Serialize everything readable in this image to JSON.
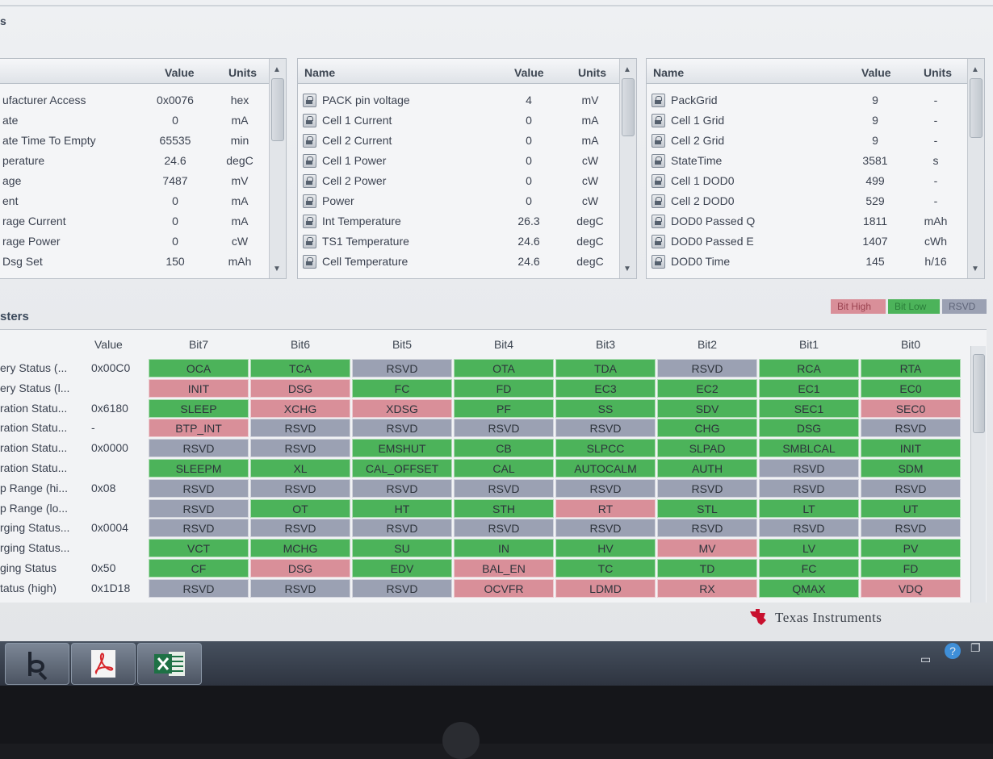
{
  "window": {
    "title_fragment": "s"
  },
  "panel1": {
    "headers": {
      "name": "",
      "value": "Value",
      "units": "Units"
    },
    "rows": [
      {
        "name": "ufacturer Access",
        "value": "0x0076",
        "units": "hex"
      },
      {
        "name": "ate",
        "value": "0",
        "units": "mA"
      },
      {
        "name": "ate Time To Empty",
        "value": "65535",
        "units": "min"
      },
      {
        "name": "perature",
        "value": "24.6",
        "units": "degC"
      },
      {
        "name": "age",
        "value": "7487",
        "units": "mV"
      },
      {
        "name": "ent",
        "value": "0",
        "units": "mA"
      },
      {
        "name": "rage Current",
        "value": "0",
        "units": "mA"
      },
      {
        "name": "rage Power",
        "value": "0",
        "units": "cW"
      },
      {
        "name": "Dsg Set",
        "value": "150",
        "units": "mAh"
      }
    ]
  },
  "panel2": {
    "headers": {
      "name": "Name",
      "value": "Value",
      "units": "Units"
    },
    "rows": [
      {
        "name": "PACK pin voltage",
        "value": "4",
        "units": "mV"
      },
      {
        "name": "Cell 1 Current",
        "value": "0",
        "units": "mA"
      },
      {
        "name": "Cell 2 Current",
        "value": "0",
        "units": "mA"
      },
      {
        "name": "Cell 1 Power",
        "value": "0",
        "units": "cW"
      },
      {
        "name": "Cell 2 Power",
        "value": "0",
        "units": "cW"
      },
      {
        "name": "Power",
        "value": "0",
        "units": "cW"
      },
      {
        "name": "Int Temperature",
        "value": "26.3",
        "units": "degC"
      },
      {
        "name": "TS1 Temperature",
        "value": "24.6",
        "units": "degC"
      },
      {
        "name": "Cell Temperature",
        "value": "24.6",
        "units": "degC"
      }
    ]
  },
  "panel3": {
    "headers": {
      "name": "Name",
      "value": "Value",
      "units": "Units"
    },
    "rows": [
      {
        "name": "PackGrid",
        "value": "9",
        "units": "-"
      },
      {
        "name": "Cell 1 Grid",
        "value": "9",
        "units": "-"
      },
      {
        "name": "Cell 2 Grid",
        "value": "9",
        "units": "-"
      },
      {
        "name": "StateTime",
        "value": "3581",
        "units": "s"
      },
      {
        "name": "Cell 1 DOD0",
        "value": "499",
        "units": "-"
      },
      {
        "name": "Cell 2 DOD0",
        "value": "529",
        "units": "-"
      },
      {
        "name": "DOD0 Passed Q",
        "value": "1811",
        "units": "mAh"
      },
      {
        "name": "DOD0 Passed E",
        "value": "1407",
        "units": "cWh"
      },
      {
        "name": "DOD0 Time",
        "value": "145",
        "units": "h/16"
      }
    ]
  },
  "registers_title": "sters",
  "legend": {
    "high": "Bit High",
    "low": "Bit Low",
    "rsvd": "RSVD"
  },
  "legend_colors": {
    "high": "#d98f99",
    "low": "#4cb35a",
    "rsvd": "#9ba1b3"
  },
  "grid": {
    "value_header": "Value",
    "bit_headers": [
      "Bit7",
      "Bit6",
      "Bit5",
      "Bit4",
      "Bit3",
      "Bit2",
      "Bit1",
      "Bit0"
    ],
    "rows": [
      {
        "label": "ery Status (...",
        "value": "0x00C0",
        "bits": [
          [
            "OCA",
            "g"
          ],
          [
            "TCA",
            "g"
          ],
          [
            "RSVD",
            "b"
          ],
          [
            "OTA",
            "g"
          ],
          [
            "TDA",
            "g"
          ],
          [
            "RSVD",
            "b"
          ],
          [
            "RCA",
            "g"
          ],
          [
            "RTA",
            "g"
          ]
        ]
      },
      {
        "label": "ery Status (l...",
        "value": "",
        "bits": [
          [
            "INIT",
            "r"
          ],
          [
            "DSG",
            "r"
          ],
          [
            "FC",
            "g"
          ],
          [
            "FD",
            "g"
          ],
          [
            "EC3",
            "g"
          ],
          [
            "EC2",
            "g"
          ],
          [
            "EC1",
            "g"
          ],
          [
            "EC0",
            "g"
          ]
        ]
      },
      {
        "label": "ration Statu...",
        "value": "0x6180",
        "bits": [
          [
            "SLEEP",
            "g"
          ],
          [
            "XCHG",
            "r"
          ],
          [
            "XDSG",
            "r"
          ],
          [
            "PF",
            "g"
          ],
          [
            "SS",
            "g"
          ],
          [
            "SDV",
            "g"
          ],
          [
            "SEC1",
            "g"
          ],
          [
            "SEC0",
            "r"
          ]
        ]
      },
      {
        "label": "ration Statu...",
        "value": "-",
        "bits": [
          [
            "BTP_INT",
            "r"
          ],
          [
            "RSVD",
            "b"
          ],
          [
            "RSVD",
            "b"
          ],
          [
            "RSVD",
            "b"
          ],
          [
            "RSVD",
            "b"
          ],
          [
            "CHG",
            "g"
          ],
          [
            "DSG",
            "g"
          ],
          [
            "RSVD",
            "b"
          ]
        ]
      },
      {
        "label": "ration Statu...",
        "value": "0x0000",
        "bits": [
          [
            "RSVD",
            "b"
          ],
          [
            "RSVD",
            "b"
          ],
          [
            "EMSHUT",
            "g"
          ],
          [
            "CB",
            "g"
          ],
          [
            "SLPCC",
            "g"
          ],
          [
            "SLPAD",
            "g"
          ],
          [
            "SMBLCAL",
            "g"
          ],
          [
            "INIT",
            "g"
          ]
        ]
      },
      {
        "label": "ration Statu...",
        "value": "",
        "bits": [
          [
            "SLEEPM",
            "g"
          ],
          [
            "XL",
            "g"
          ],
          [
            "CAL_OFFSET",
            "g"
          ],
          [
            "CAL",
            "g"
          ],
          [
            "AUTOCALM",
            "g"
          ],
          [
            "AUTH",
            "g"
          ],
          [
            "RSVD",
            "b"
          ],
          [
            "SDM",
            "g"
          ]
        ]
      },
      {
        "label": "p Range (hi...",
        "value": "0x08",
        "bits": [
          [
            "RSVD",
            "b"
          ],
          [
            "RSVD",
            "b"
          ],
          [
            "RSVD",
            "b"
          ],
          [
            "RSVD",
            "b"
          ],
          [
            "RSVD",
            "b"
          ],
          [
            "RSVD",
            "b"
          ],
          [
            "RSVD",
            "b"
          ],
          [
            "RSVD",
            "b"
          ]
        ]
      },
      {
        "label": "p Range (lo...",
        "value": "",
        "bits": [
          [
            "RSVD",
            "b"
          ],
          [
            "OT",
            "g"
          ],
          [
            "HT",
            "g"
          ],
          [
            "STH",
            "g"
          ],
          [
            "RT",
            "r"
          ],
          [
            "STL",
            "g"
          ],
          [
            "LT",
            "g"
          ],
          [
            "UT",
            "g"
          ]
        ]
      },
      {
        "label": "rging Status...",
        "value": "0x0004",
        "bits": [
          [
            "RSVD",
            "b"
          ],
          [
            "RSVD",
            "b"
          ],
          [
            "RSVD",
            "b"
          ],
          [
            "RSVD",
            "b"
          ],
          [
            "RSVD",
            "b"
          ],
          [
            "RSVD",
            "b"
          ],
          [
            "RSVD",
            "b"
          ],
          [
            "RSVD",
            "b"
          ]
        ]
      },
      {
        "label": "rging Status...",
        "value": "",
        "bits": [
          [
            "VCT",
            "g"
          ],
          [
            "MCHG",
            "g"
          ],
          [
            "SU",
            "g"
          ],
          [
            "IN",
            "g"
          ],
          [
            "HV",
            "g"
          ],
          [
            "MV",
            "r"
          ],
          [
            "LV",
            "g"
          ],
          [
            "PV",
            "g"
          ]
        ]
      },
      {
        "label": "ging Status",
        "value": "0x50",
        "bits": [
          [
            "CF",
            "g"
          ],
          [
            "DSG",
            "r"
          ],
          [
            "EDV",
            "g"
          ],
          [
            "BAL_EN",
            "r"
          ],
          [
            "TC",
            "g"
          ],
          [
            "TD",
            "g"
          ],
          [
            "FC",
            "g"
          ],
          [
            "FD",
            "g"
          ]
        ]
      },
      {
        "label": "tatus (high)",
        "value": "0x1D18",
        "bits": [
          [
            "RSVD",
            "b"
          ],
          [
            "RSVD",
            "b"
          ],
          [
            "RSVD",
            "b"
          ],
          [
            "OCVFR",
            "r"
          ],
          [
            "LDMD",
            "r"
          ],
          [
            "RX",
            "r"
          ],
          [
            "QMAX",
            "g"
          ],
          [
            "VDQ",
            "r"
          ]
        ]
      }
    ]
  },
  "brand": "Texas Instruments",
  "brand_accent": "#c8102e",
  "taskbar": {
    "apps": [
      {
        "name": "bq-studio-icon"
      },
      {
        "name": "pdf-reader-icon"
      },
      {
        "name": "excel-icon"
      }
    ]
  }
}
